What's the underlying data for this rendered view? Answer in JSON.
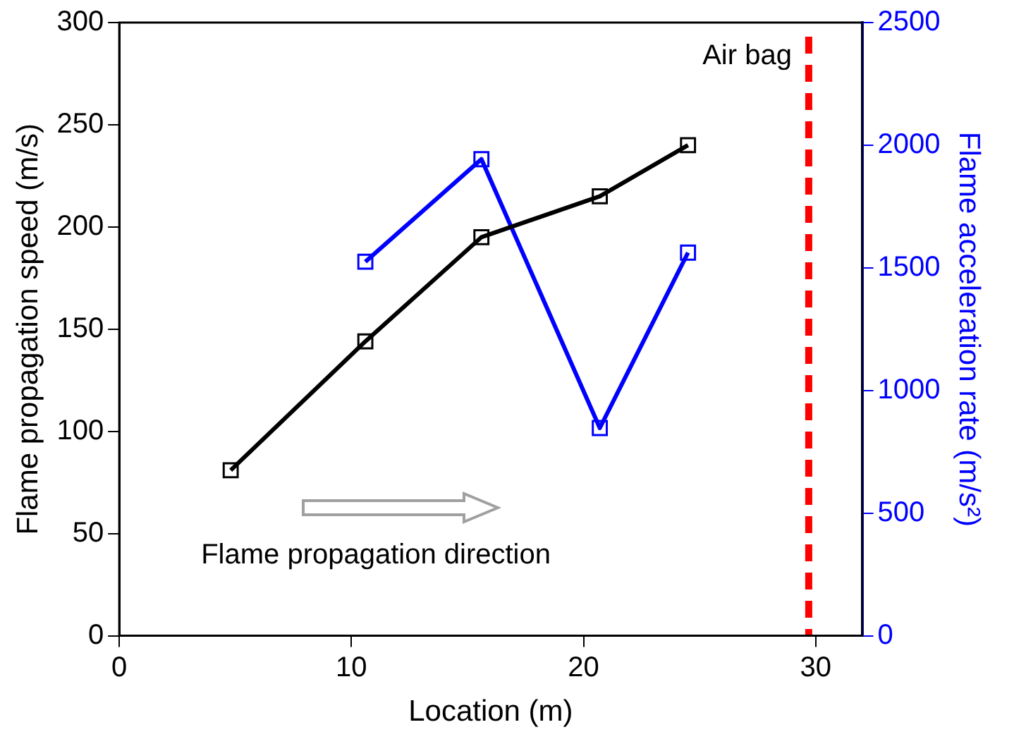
{
  "chart_data": {
    "type": "line",
    "xlabel": "Location (m)",
    "ylabel": "Flame propagation speed (m/s)",
    "y2label": "Flame acceleration rate (m/s²)",
    "xlim": [
      0,
      32
    ],
    "xticks": [
      0,
      10,
      20,
      30
    ],
    "ylim": [
      0,
      300
    ],
    "yticks": [
      0,
      50,
      100,
      150,
      200,
      250,
      300
    ],
    "y2lim": [
      0,
      2500
    ],
    "y2ticks": [
      0,
      500,
      1000,
      1500,
      2000,
      2500
    ],
    "marker": "square",
    "grid": false,
    "legend": false,
    "series": [
      {
        "color": "#000000",
        "x": [
          4.8,
          10.6,
          15.6,
          20.7,
          24.5
        ],
        "values": [
          81,
          144,
          195,
          215,
          240
        ]
      },
      {
        "color": "#0000ff",
        "axis": "y2",
        "x": [
          10.6,
          15.6,
          20.7,
          24.5
        ],
        "values": [
          1525,
          1943,
          847,
          1562
        ]
      }
    ],
    "ref_lines": [
      {
        "axis": "x",
        "value": 29.7,
        "label": "Air bag",
        "color": "#ff0000",
        "line_style": "dashed"
      }
    ],
    "annotations": [
      "Flame propagation direction"
    ]
  }
}
